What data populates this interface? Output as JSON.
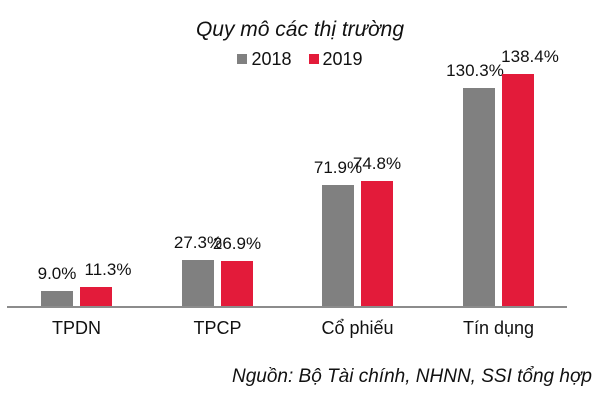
{
  "chart_data": {
    "type": "bar",
    "title": "Quy mô các thị trường",
    "categories": [
      "TPDN",
      "TPCP",
      "Cổ phiếu",
      "Tín dụng"
    ],
    "series": [
      {
        "name": "2018",
        "color": "#808080",
        "values": [
          9.0,
          27.3,
          71.9,
          130.3
        ],
        "labels": [
          "9.0%",
          "27.3%",
          "71.9%",
          "130.3%"
        ]
      },
      {
        "name": "2019",
        "color": "#e31b3a",
        "values": [
          11.3,
          26.9,
          74.8,
          138.4
        ],
        "labels": [
          "11.3%",
          "26.9%",
          "74.8%",
          "138.4%"
        ]
      }
    ],
    "xlabel": "",
    "ylabel": "",
    "ylim": [
      0,
      140
    ],
    "grid": false,
    "legend_position": "top",
    "source": "Nguồn: Bộ Tài chính, NHNN, SSI tổng hợp"
  }
}
